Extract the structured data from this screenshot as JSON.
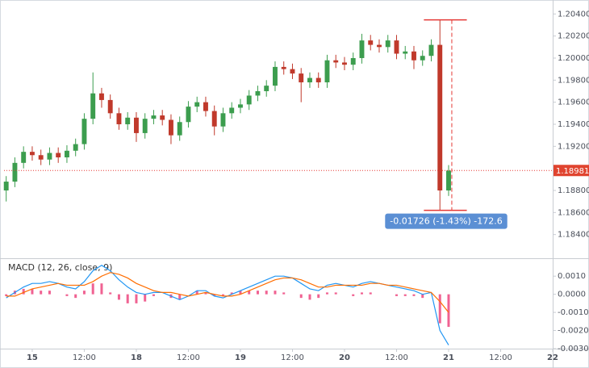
{
  "chart_data": [
    {
      "type": "candlestick",
      "x": [
        -6,
        -4,
        -2,
        0,
        2,
        4,
        6,
        8,
        10,
        12,
        14,
        16,
        18,
        20,
        22,
        24,
        26,
        28,
        30,
        32,
        34,
        36,
        38,
        40,
        42,
        44,
        46,
        48,
        50,
        52,
        54,
        56,
        58,
        60,
        62,
        64,
        66,
        68,
        70,
        72,
        74,
        76,
        78,
        80,
        82,
        84,
        86,
        88,
        90,
        92,
        94,
        96
      ],
      "open": [
        1.188,
        1.1888,
        1.1905,
        1.1915,
        1.1912,
        1.1908,
        1.1914,
        1.191,
        1.1916,
        1.1922,
        1.1945,
        1.1968,
        1.1962,
        1.195,
        1.194,
        1.1946,
        1.1932,
        1.1945,
        1.1948,
        1.1944,
        1.193,
        1.1942,
        1.1956,
        1.196,
        1.1952,
        1.1938,
        1.195,
        1.1955,
        1.1958,
        1.1966,
        1.197,
        1.1975,
        1.1992,
        1.199,
        1.1986,
        1.1978,
        1.1982,
        1.1978,
        1.1998,
        1.1996,
        1.1994,
        1.2,
        1.2016,
        1.2012,
        1.201,
        1.2016,
        1.2004,
        1.2006,
        1.1998,
        1.2002,
        1.2012,
        1.188
      ],
      "high": [
        1.1893,
        1.191,
        1.192,
        1.192,
        1.1917,
        1.1919,
        1.1919,
        1.1921,
        1.1927,
        1.195,
        1.1987,
        1.1973,
        1.1967,
        1.1955,
        1.1951,
        1.1951,
        1.195,
        1.1953,
        1.1953,
        1.1949,
        1.1947,
        1.1961,
        1.1965,
        1.1965,
        1.1957,
        1.1955,
        1.196,
        1.1963,
        1.1971,
        1.1975,
        1.198,
        1.1997,
        1.1997,
        1.1995,
        1.1991,
        1.1987,
        1.1987,
        1.2003,
        1.2003,
        1.2001,
        1.2005,
        1.2022,
        1.2021,
        1.2017,
        1.2021,
        1.2021,
        1.2011,
        1.2011,
        1.2007,
        1.2017,
        1.20346,
        1.1903
      ],
      "low": [
        1.187,
        1.1883,
        1.19,
        1.1907,
        1.1903,
        1.1903,
        1.1905,
        1.1905,
        1.1911,
        1.1917,
        1.194,
        1.1955,
        1.1945,
        1.1935,
        1.1935,
        1.1924,
        1.1927,
        1.194,
        1.1939,
        1.1922,
        1.1925,
        1.1937,
        1.1951,
        1.1947,
        1.193,
        1.1933,
        1.1945,
        1.195,
        1.1953,
        1.1961,
        1.1965,
        1.197,
        1.1985,
        1.1981,
        1.196,
        1.1973,
        1.1973,
        1.1973,
        1.1991,
        1.1989,
        1.1989,
        1.1995,
        1.2007,
        1.2005,
        1.2005,
        1.1999,
        1.1999,
        1.199,
        1.1993,
        1.1997,
        1.1862,
        1.1875
      ],
      "close": [
        1.1888,
        1.1905,
        1.1915,
        1.1912,
        1.1908,
        1.1914,
        1.191,
        1.1916,
        1.1922,
        1.1945,
        1.1968,
        1.1962,
        1.195,
        1.194,
        1.1946,
        1.1932,
        1.1945,
        1.1948,
        1.1944,
        1.193,
        1.1942,
        1.1956,
        1.196,
        1.1952,
        1.1938,
        1.195,
        1.1955,
        1.1958,
        1.1966,
        1.197,
        1.1975,
        1.1992,
        1.199,
        1.1986,
        1.1978,
        1.1982,
        1.1978,
        1.1998,
        1.1996,
        1.1994,
        1.2,
        1.2016,
        1.2012,
        1.201,
        1.2016,
        1.2004,
        1.2006,
        1.1998,
        1.2002,
        1.2012,
        1.188,
        1.1898
      ],
      "up_color": "#3c9d4e",
      "down_color": "#c0392b",
      "xlim": [
        -6.5,
        120
      ],
      "ylim": [
        1.182,
        1.2049
      ],
      "yticks": [
        {
          "value": 1.184,
          "label": "1.18400"
        },
        {
          "value": 1.186,
          "label": "1.18600"
        },
        {
          "value": 1.188,
          "label": "1.18800"
        },
        {
          "value": 1.19,
          "label": "1.19000"
        },
        {
          "value": 1.192,
          "label": "1.19200"
        },
        {
          "value": 1.194,
          "label": "1.19400"
        },
        {
          "value": 1.196,
          "label": "1.19600"
        },
        {
          "value": 1.198,
          "label": "1.19800"
        },
        {
          "value": 1.2,
          "label": "1.20000"
        },
        {
          "value": 1.202,
          "label": "1.20200"
        },
        {
          "value": 1.204,
          "label": "1.20400"
        }
      ],
      "grid": true,
      "last_price": {
        "value": 1.18981,
        "label": "1.18981"
      },
      "measure": {
        "top": 1.20346,
        "bottom": 1.1862,
        "x_from": 90.3,
        "x_to": 100.2,
        "label": "-0.01726 (-1.43%) -172.6"
      }
    },
    {
      "type": "macd",
      "title": "MACD (12, 26, close, 9)",
      "x": [
        -6,
        -4,
        -2,
        0,
        2,
        4,
        6,
        8,
        10,
        12,
        14,
        16,
        18,
        20,
        22,
        24,
        26,
        28,
        30,
        32,
        34,
        36,
        38,
        40,
        42,
        44,
        46,
        48,
        50,
        52,
        54,
        56,
        58,
        60,
        62,
        64,
        66,
        68,
        70,
        72,
        74,
        76,
        78,
        80,
        82,
        84,
        86,
        88,
        90,
        92,
        94,
        96
      ],
      "series": [
        {
          "style": "histogram",
          "color": "#f06292",
          "values": [
            -0.0001,
            0.0002,
            0.0003,
            0.0003,
            0.0002,
            0.0002,
            0.0,
            -0.0001,
            -0.0002,
            0.0002,
            0.0006,
            0.0006,
            0.0001,
            -0.0003,
            -0.0005,
            -0.0005,
            -0.0004,
            -0.0001,
            0.0,
            -0.0002,
            -0.0003,
            0.0,
            0.0002,
            0.0001,
            -0.0001,
            -0.0001,
            0.0001,
            0.0002,
            0.0002,
            0.0002,
            0.0002,
            0.0002,
            0.0001,
            0.0,
            -0.0002,
            -0.0003,
            -0.0002,
            0.0001,
            0.0001,
            0.0,
            -0.0001,
            0.0001,
            0.0001,
            0.0,
            0.0,
            -0.0001,
            -0.0001,
            -0.0001,
            -0.0002,
            0.0,
            -0.0016,
            -0.0018
          ]
        },
        {
          "style": "line",
          "color": "#2196f3",
          "values": [
            -0.0002,
            0.0001,
            0.0004,
            0.0006,
            0.0006,
            0.0007,
            0.0006,
            0.0004,
            0.0003,
            0.0007,
            0.0013,
            0.0016,
            0.0013,
            0.0008,
            0.0004,
            0.0001,
            0.0,
            0.0001,
            0.0001,
            -0.0001,
            -0.0003,
            -0.0001,
            0.0002,
            0.0002,
            -0.0001,
            -0.0002,
            0.0,
            0.0002,
            0.0004,
            0.0006,
            0.0008,
            0.001,
            0.001,
            0.0009,
            0.0006,
            0.0003,
            0.0002,
            0.0005,
            0.0006,
            0.0005,
            0.0004,
            0.0006,
            0.0007,
            0.0006,
            0.0005,
            0.0004,
            0.0003,
            0.0002,
            0.0,
            0.0001,
            -0.002,
            -0.0028
          ]
        },
        {
          "style": "line",
          "color": "#ff6d00",
          "values": [
            -0.0001,
            -0.0001,
            0.0001,
            0.0003,
            0.0004,
            0.0005,
            0.0006,
            0.0005,
            0.0005,
            0.0005,
            0.0007,
            0.001,
            0.0012,
            0.0011,
            0.0009,
            0.0006,
            0.0004,
            0.0002,
            0.0001,
            0.0001,
            0.0,
            -0.0001,
            0.0,
            0.0001,
            0.0,
            -0.0001,
            -0.0001,
            0.0,
            0.0002,
            0.0004,
            0.0006,
            0.0008,
            0.0009,
            0.0009,
            0.0008,
            0.0006,
            0.0004,
            0.0004,
            0.0005,
            0.0005,
            0.0005,
            0.0005,
            0.0006,
            0.0006,
            0.0005,
            0.0005,
            0.0004,
            0.0003,
            0.0002,
            0.0001,
            -0.0004,
            -0.001
          ]
        }
      ],
      "xlim": [
        -6.5,
        120
      ],
      "ylim": [
        -0.003,
        0.0019
      ],
      "yticks": [
        {
          "value": 0.001,
          "label": "0.0010"
        },
        {
          "value": 0,
          "label": "0.0000"
        },
        {
          "value": -0.001,
          "label": "-0.0010"
        },
        {
          "value": -0.002,
          "label": "-0.0020"
        },
        {
          "value": -0.003,
          "label": "-0.0030"
        }
      ],
      "xticks": [
        {
          "value": 0,
          "label": "15"
        },
        {
          "value": 12,
          "label": "12:00"
        },
        {
          "value": 24,
          "label": "18"
        },
        {
          "value": 36,
          "label": "12:00"
        },
        {
          "value": 48,
          "label": "19"
        },
        {
          "value": 60,
          "label": "12:00"
        },
        {
          "value": 72,
          "label": "20"
        },
        {
          "value": 84,
          "label": "12:00"
        },
        {
          "value": 96,
          "label": "21"
        },
        {
          "value": 108,
          "label": "12:00"
        },
        {
          "value": 120,
          "label": "22"
        }
      ],
      "grid": true
    }
  ]
}
